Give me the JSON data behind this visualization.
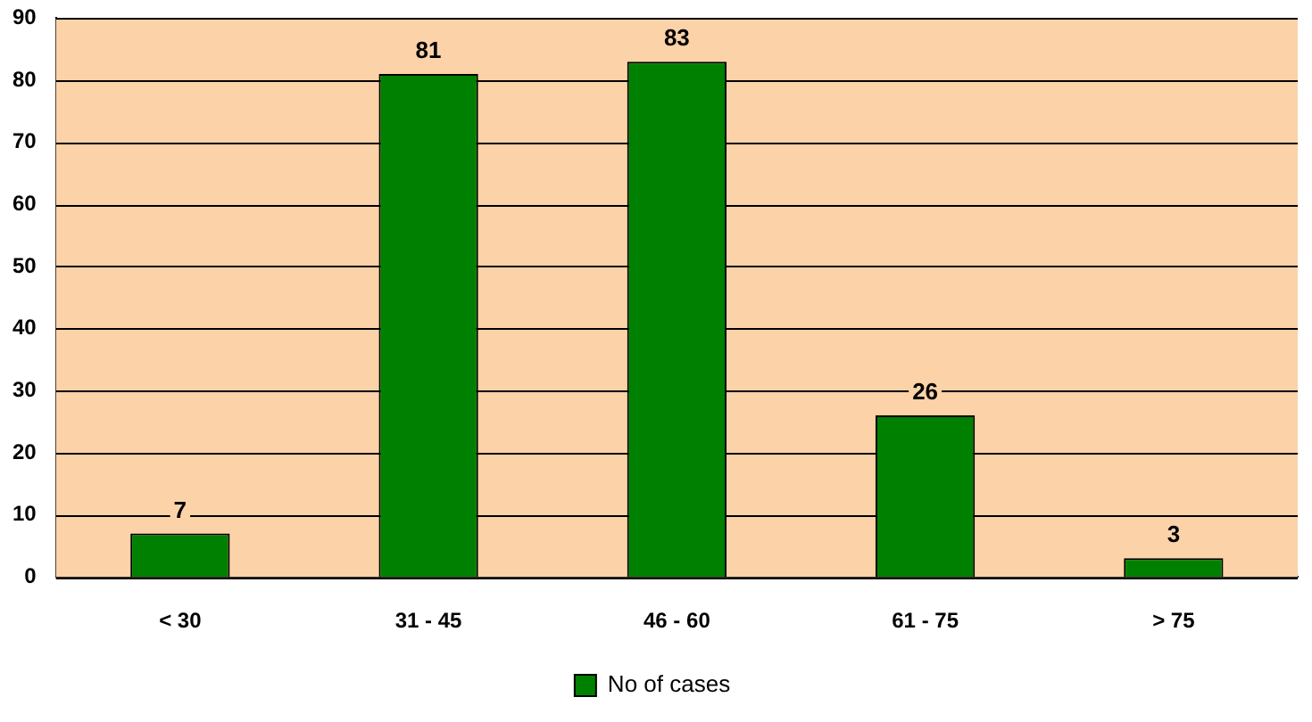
{
  "chart_data": {
    "type": "bar",
    "categories": [
      "< 30",
      "31 - 45",
      "46 - 60",
      "61 - 75",
      "> 75"
    ],
    "series": [
      {
        "name": "No of cases",
        "color": "#008000",
        "values": [
          7,
          81,
          83,
          26,
          3
        ]
      }
    ],
    "ylim": [
      0,
      90
    ],
    "yticks": [
      0,
      10,
      20,
      30,
      40,
      50,
      60,
      70,
      80,
      90
    ],
    "grid": "y",
    "legend": "bottom",
    "data_labels": true
  }
}
